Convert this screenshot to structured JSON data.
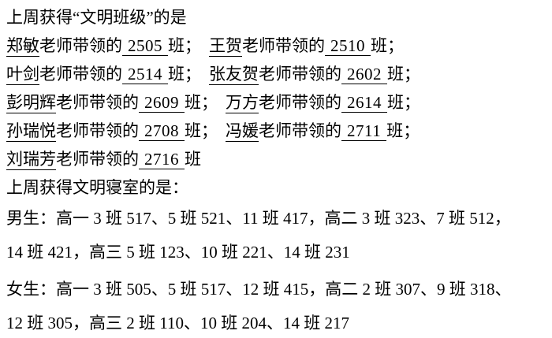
{
  "page": {
    "background_color": "#ffffff",
    "text_color": "#000000"
  },
  "class_section": {
    "title": "上周获得“文明班级”的是",
    "awards": [
      {
        "teacher": "郑敏",
        "label": "老师带领的",
        "class_no": "2505",
        "suffix": "班；"
      },
      {
        "teacher": "王贺",
        "label": "老师带领的",
        "class_no": "2510",
        "suffix": "班；"
      },
      {
        "teacher": "叶剑",
        "label": "老师带领的",
        "class_no": "2514",
        "suffix": "班；"
      },
      {
        "teacher": "张友贺",
        "label": "老师带领的",
        "class_no": "2602",
        "suffix": "班；"
      },
      {
        "teacher": "彭明辉",
        "label": "老师带领的",
        "class_no": "2609",
        "suffix": "班；"
      },
      {
        "teacher": "万方",
        "label": "老师带领的",
        "class_no": "2614",
        "suffix": "班；"
      },
      {
        "teacher": "孙瑞悦",
        "label": "老师带领的",
        "class_no": "2708",
        "suffix": "班；"
      },
      {
        "teacher": "冯媛",
        "label": "老师带领的",
        "class_no": "2711",
        "suffix": "班；"
      },
      {
        "teacher": "刘瑞芳",
        "label": "老师带领的",
        "class_no": "2716",
        "suffix": "班"
      }
    ]
  },
  "dorm_section": {
    "title": "上周获得文明寝室的是：",
    "boys_label": "男生：",
    "boys_line1": "高一 3 班 517、5 班 521、11 班 417，高二 3 班 323、7 班 512，",
    "boys_line2": "14 班 421，高三 5 班 123、10 班 221、14 班 231",
    "girls_label": "女生：",
    "girls_line1": "高一 3 班 505、5 班 517、12 班 415，高二 2 班 307、9 班 318、",
    "girls_line2": "12 班 305，高三 2 班 110、10 班 204、14 班 217"
  }
}
